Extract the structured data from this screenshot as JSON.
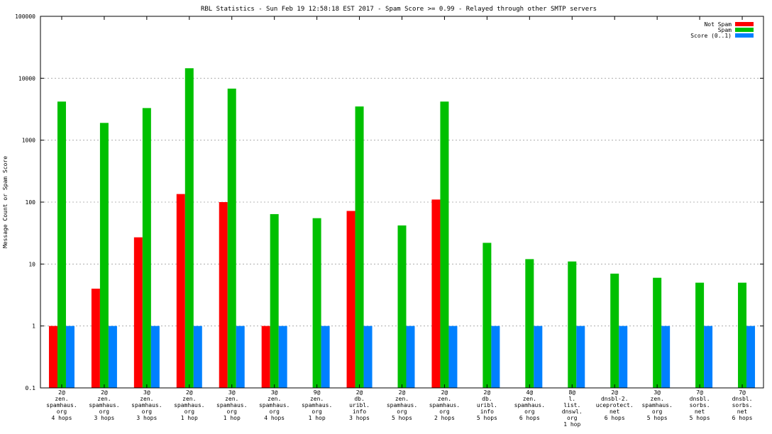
{
  "chart_data": {
    "type": "bar",
    "title": "RBL Statistics - Sun Feb 19 12:58:18 EST 2017 - Spam Score >= 0.99 - Relayed through other SMTP servers",
    "xlabel": "",
    "ylabel": "Message Count or Spam Score",
    "yscale": "log",
    "ylim": [
      0.1,
      100000
    ],
    "yticks": [
      "0.1",
      "1",
      "10",
      "100",
      "1000",
      "10000",
      "100000"
    ],
    "grid": true,
    "legend_position": "top-right",
    "categories": [
      [
        "2@",
        "zen.",
        "spamhaus.",
        "org",
        "4 hops"
      ],
      [
        "2@",
        "zen.",
        "spamhaus.",
        "org",
        "3 hops"
      ],
      [
        "3@",
        "zen.",
        "spamhaus.",
        "org",
        "3 hops"
      ],
      [
        "2@",
        "zen.",
        "spamhaus.",
        "org",
        "1 hop"
      ],
      [
        "3@",
        "zen.",
        "spamhaus.",
        "org",
        "1 hop"
      ],
      [
        "3@",
        "zen.",
        "spamhaus.",
        "org",
        "4 hops"
      ],
      [
        "9@",
        "zen.",
        "spamhaus.",
        "org",
        "1 hop"
      ],
      [
        "2@",
        "db.",
        "uribl.",
        "info",
        "3 hops"
      ],
      [
        "2@",
        "zen.",
        "spamhaus.",
        "org",
        "5 hops"
      ],
      [
        "2@",
        "zen.",
        "spamhaus.",
        "org",
        "2 hops"
      ],
      [
        "2@",
        "db.",
        "uribl.",
        "info",
        "5 hops"
      ],
      [
        "4@",
        "zen.",
        "spamhaus.",
        "org",
        "6 hops"
      ],
      [
        "8@",
        "l.",
        "list.",
        "dnswl.",
        "org",
        "1 hop"
      ],
      [
        "2@",
        "dnsbl-2.",
        "uceprotect.",
        "net",
        "6 hops"
      ],
      [
        "3@",
        "zen.",
        "spamhaus.",
        "org",
        "5 hops"
      ],
      [
        "7@",
        "dnsbl.",
        "sorbs.",
        "net",
        "5 hops"
      ],
      [
        "7@",
        "dnsbl.",
        "sorbs.",
        "net",
        "6 hops"
      ]
    ],
    "series": [
      {
        "name": "Not Spam",
        "color": "#ff0000",
        "values": [
          1,
          4,
          27,
          135,
          100,
          1,
          null,
          72,
          null,
          110,
          null,
          null,
          null,
          null,
          null,
          null,
          null
        ]
      },
      {
        "name": "Spam",
        "color": "#00c000",
        "values": [
          4200,
          1900,
          3300,
          14500,
          6800,
          64,
          55,
          3500,
          42,
          4200,
          22,
          12,
          11,
          7,
          6,
          5,
          5
        ]
      },
      {
        "name": "Score (0..1)",
        "color": "#0080ff",
        "values": [
          1,
          1,
          1,
          1,
          1,
          1,
          1,
          1,
          1,
          1,
          1,
          1,
          1,
          1,
          1,
          1,
          1
        ]
      }
    ]
  }
}
